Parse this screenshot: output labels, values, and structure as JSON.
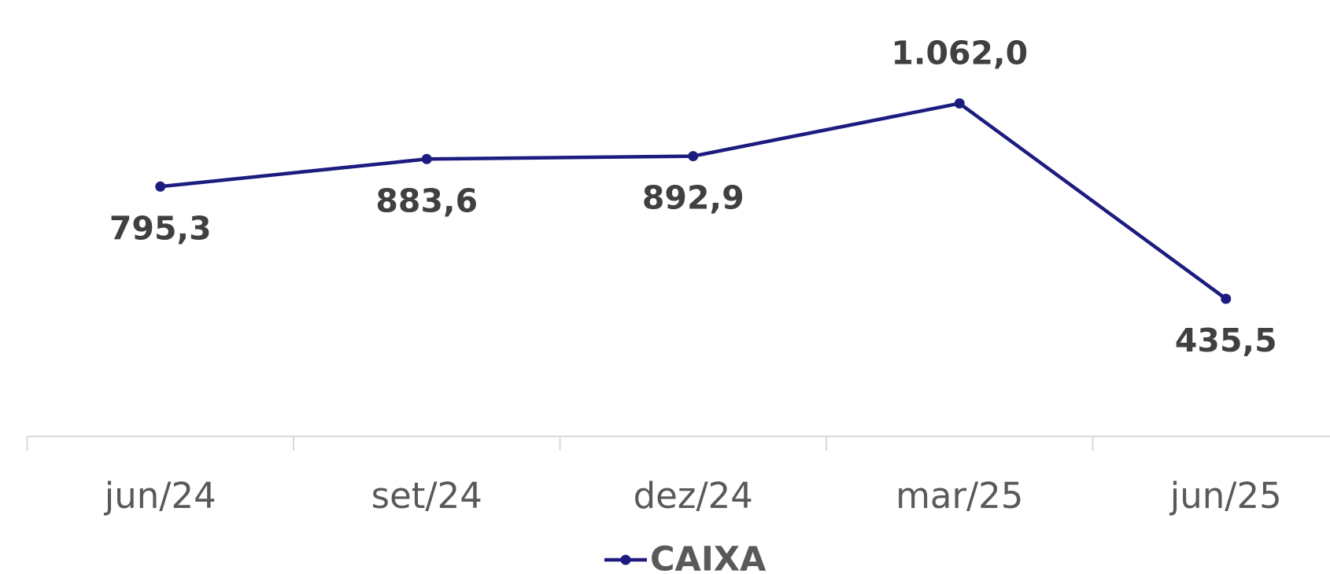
{
  "chart_data": {
    "type": "line",
    "categories": [
      "jun/24",
      "set/24",
      "dez/24",
      "mar/25",
      "jun/25"
    ],
    "series": [
      {
        "name": "CAIXA",
        "color": "#1c1c80",
        "values": [
          795.3,
          883.6,
          892.9,
          1062.0,
          435.5
        ],
        "value_labels": [
          "795,3",
          "883,6",
          "892,9",
          "1.062,0",
          "435,5"
        ]
      }
    ],
    "legend": "bottom"
  }
}
